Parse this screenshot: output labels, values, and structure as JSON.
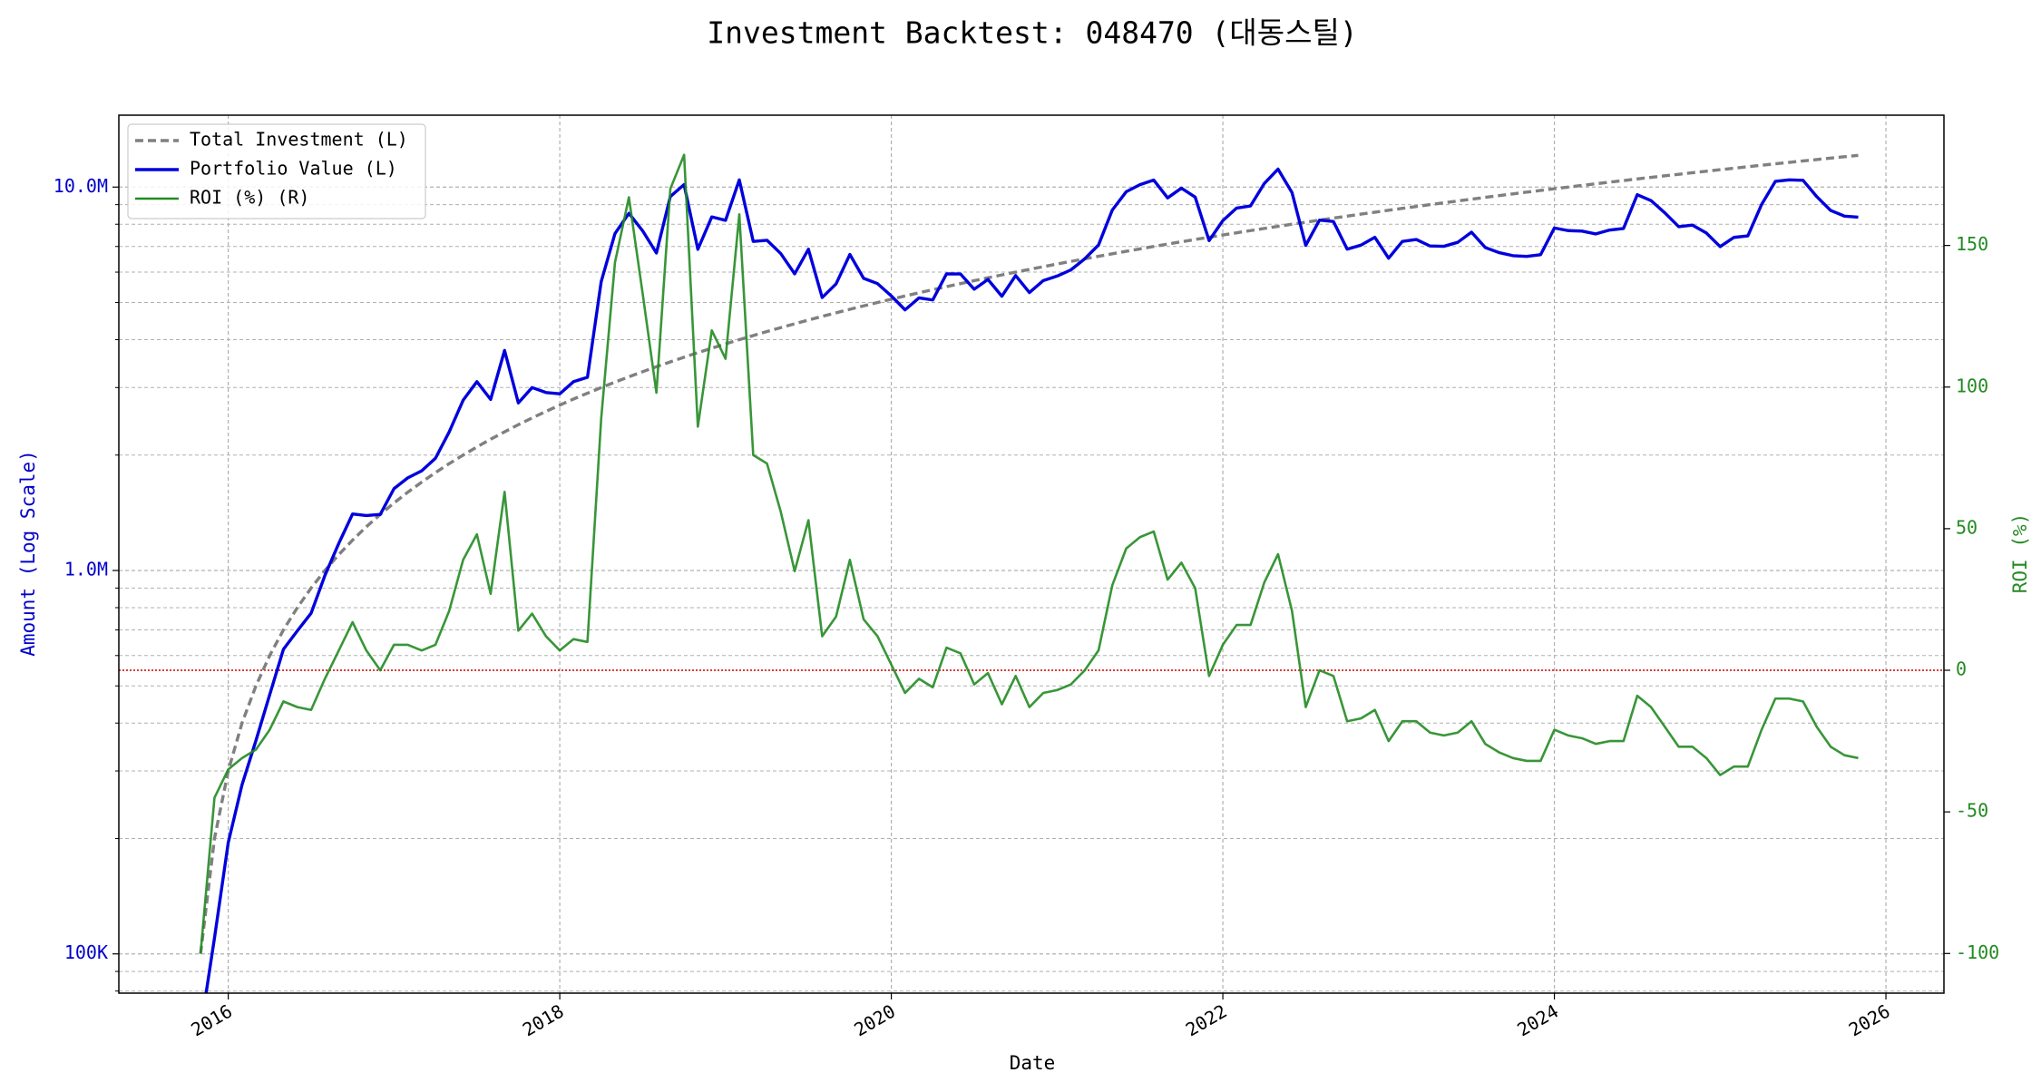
{
  "chart_data": {
    "type": "line",
    "title": "Investment Backtest: 048470 (대동스틸)",
    "xlabel": "Date",
    "ylabel": "Amount (Log Scale)",
    "y2label": "ROI (%)",
    "ylog": true,
    "grid": true,
    "legend": "upper left",
    "ylabel_color": "#0000cc",
    "y2label_color": "#228b22",
    "xlim": [
      2015.34,
      2026.35
    ],
    "xticks": [
      2016,
      2018,
      2020,
      2022,
      2024,
      2026
    ],
    "ylim": [
      79000,
      15400000
    ],
    "yticks": [
      {
        "value": 100000,
        "label": "100K"
      },
      {
        "value": 1000000,
        "label": "1.0M"
      },
      {
        "value": 10000000,
        "label": "10.0M"
      }
    ],
    "yminorticks": [
      80000,
      90000,
      200000,
      300000,
      400000,
      500000,
      600000,
      700000,
      800000,
      900000,
      2000000,
      3000000,
      4000000,
      5000000,
      6000000,
      7000000,
      8000000,
      9000000
    ],
    "y2lim": [
      -114,
      196
    ],
    "y2ticks": [
      -100,
      -50,
      0,
      50,
      100,
      150
    ],
    "reference_line": {
      "axis": "y2",
      "value": 0,
      "color": "#cc0000"
    },
    "x": [
      2015.833,
      2015.917,
      2016,
      2016.083,
      2016.167,
      2016.25,
      2016.333,
      2016.417,
      2016.5,
      2016.583,
      2016.667,
      2016.75,
      2016.833,
      2016.917,
      2017,
      2017.083,
      2017.167,
      2017.25,
      2017.333,
      2017.417,
      2017.5,
      2017.583,
      2017.667,
      2017.75,
      2017.833,
      2017.917,
      2018,
      2018.083,
      2018.167,
      2018.25,
      2018.333,
      2018.417,
      2018.5,
      2018.583,
      2018.667,
      2018.75,
      2018.833,
      2018.917,
      2019,
      2019.083,
      2019.167,
      2019.25,
      2019.333,
      2019.417,
      2019.5,
      2019.583,
      2019.667,
      2019.75,
      2019.833,
      2019.917,
      2020,
      2020.083,
      2020.167,
      2020.25,
      2020.333,
      2020.417,
      2020.5,
      2020.583,
      2020.667,
      2020.75,
      2020.833,
      2020.917,
      2021,
      2021.083,
      2021.167,
      2021.25,
      2021.333,
      2021.417,
      2021.5,
      2021.583,
      2021.667,
      2021.75,
      2021.833,
      2021.917,
      2022,
      2022.083,
      2022.167,
      2022.25,
      2022.333,
      2022.417,
      2022.5,
      2022.583,
      2022.667,
      2022.75,
      2022.833,
      2022.917,
      2023,
      2023.083,
      2023.167,
      2023.25,
      2023.333,
      2023.417,
      2023.5,
      2023.583,
      2023.667,
      2023.75,
      2023.833,
      2023.917,
      2024,
      2024.083,
      2024.167,
      2024.25,
      2024.333,
      2024.417,
      2024.5,
      2024.583,
      2024.667,
      2024.75,
      2024.833,
      2024.917,
      2025,
      2025.083,
      2025.167,
      2025.25,
      2025.333,
      2025.417,
      2025.5,
      2025.583,
      2025.667,
      2025.75,
      2025.833
    ],
    "series": [
      {
        "name": "Total Investment (L)",
        "color": "#808080",
        "style": "dashed",
        "axis": "y",
        "values": [
          100000,
          200000,
          300000,
          400000,
          500000,
          600000,
          700000,
          800000,
          900000,
          1000000,
          1100000,
          1200000,
          1300000,
          1400000,
          1500000,
          1600000,
          1700000,
          1800000,
          1900000,
          2000000,
          2100000,
          2200000,
          2300000,
          2400000,
          2500000,
          2600000,
          2700000,
          2800000,
          2900000,
          3000000,
          3100000,
          3200000,
          3300000,
          3400000,
          3500000,
          3600000,
          3700000,
          3800000,
          3900000,
          4000000,
          4100000,
          4200000,
          4300000,
          4400000,
          4500000,
          4600000,
          4700000,
          4800000,
          4900000,
          5000000,
          5100000,
          5200000,
          5300000,
          5400000,
          5500000,
          5600000,
          5700000,
          5800000,
          5900000,
          6000000,
          6100000,
          6200000,
          6300000,
          6400000,
          6500000,
          6600000,
          6700000,
          6800000,
          6900000,
          7000000,
          7100000,
          7200000,
          7300000,
          7400000,
          7500000,
          7600000,
          7700000,
          7800000,
          7900000,
          8000000,
          8100000,
          8200000,
          8300000,
          8400000,
          8500000,
          8600000,
          8700000,
          8800000,
          8900000,
          9000000,
          9100000,
          9200000,
          9300000,
          9400000,
          9500000,
          9600000,
          9700000,
          9800000,
          9900000,
          10000000,
          10100000,
          10200000,
          10300000,
          10400000,
          10500000,
          10600000,
          10700000,
          10800000,
          10900000,
          11000000,
          11100000,
          11200000,
          11300000,
          11400000,
          11500000,
          11600000,
          11700000,
          11800000,
          11900000,
          12000000,
          12100000
        ]
      },
      {
        "name": "Portfolio Value (L)",
        "color": "#0000dd",
        "style": "solid",
        "axis": "y",
        "values": [
          0,
          110000,
          195000,
          276000,
          360000,
          474000,
          623000,
          696000,
          774000,
          970000,
          1177000,
          1404000,
          1391000,
          1400000,
          1635000,
          1744000,
          1819000,
          1962000,
          2299000,
          2780000,
          3108000,
          2794000,
          3749000,
          2736000,
          3000000,
          2912000,
          2889000,
          3108000,
          3190000,
          5670000,
          7564000,
          8544000,
          7689000,
          6732000,
          9450000,
          10152000,
          6882000,
          8360000,
          8190000,
          10440000,
          7216000,
          7266000,
          6708000,
          5940000,
          6885000,
          5152000,
          5593000,
          6672000,
          5782000,
          5600000,
          5202000,
          4784000,
          5141000,
          5076000,
          5940000,
          5936000,
          5415000,
          5742000,
          5192000,
          5880000,
          5307000,
          5704000,
          5859000,
          6080000,
          6500000,
          7062000,
          8710000,
          9724000,
          10143000,
          10430000,
          9372000,
          9936000,
          9417000,
          7252000,
          8175000,
          8816000,
          8932000,
          10218000,
          11139000,
          9680000,
          7047000,
          8200000,
          8134000,
          6888000,
          7055000,
          7396000,
          6525000,
          7216000,
          7298000,
          7020000,
          7007000,
          7176000,
          7626000,
          6956000,
          6745000,
          6624000,
          6596000,
          6664000,
          7821000,
          7700000,
          7676000,
          7548000,
          7725000,
          7800000,
          9555000,
          9222000,
          8560000,
          7884000,
          7957000,
          7590000,
          6993000,
          7392000,
          7458000,
          9006000,
          10350000,
          10440000,
          10413000,
          9440000,
          8687000,
          8400000,
          8349000
        ]
      },
      {
        "name": "ROI (%) (R)",
        "color": "#228b22",
        "style": "solid",
        "axis": "y2",
        "values": [
          -100,
          -45,
          -35,
          -31,
          -28,
          -21,
          -11,
          -13,
          -14,
          -3,
          7,
          17,
          7,
          0,
          9,
          9,
          7,
          9,
          21,
          39,
          48,
          27,
          63,
          14,
          20,
          12,
          7,
          11,
          10,
          89,
          144,
          167,
          133,
          98,
          170,
          182,
          86,
          120,
          110,
          161,
          76,
          73,
          56,
          35,
          53,
          12,
          19,
          39,
          18,
          12,
          2,
          -8,
          -3,
          -6,
          8,
          6,
          -5,
          -1,
          -12,
          -2,
          -13,
          -8,
          -7,
          -5,
          0,
          7,
          30,
          43,
          47,
          49,
          32,
          38,
          29,
          -2,
          9,
          16,
          16,
          31,
          41,
          21,
          -13,
          0,
          -2,
          -18,
          -17,
          -14,
          -25,
          -18,
          -18,
          -22,
          -23,
          -22,
          -18,
          -26,
          -29,
          -31,
          -32,
          -32,
          -21,
          -23,
          -24,
          -26,
          -25,
          -25,
          -9,
          -13,
          -20,
          -27,
          -27,
          -31,
          -37,
          -34,
          -34,
          -21,
          -10,
          -10,
          -11,
          -20,
          -27,
          -30,
          -31
        ]
      }
    ]
  }
}
